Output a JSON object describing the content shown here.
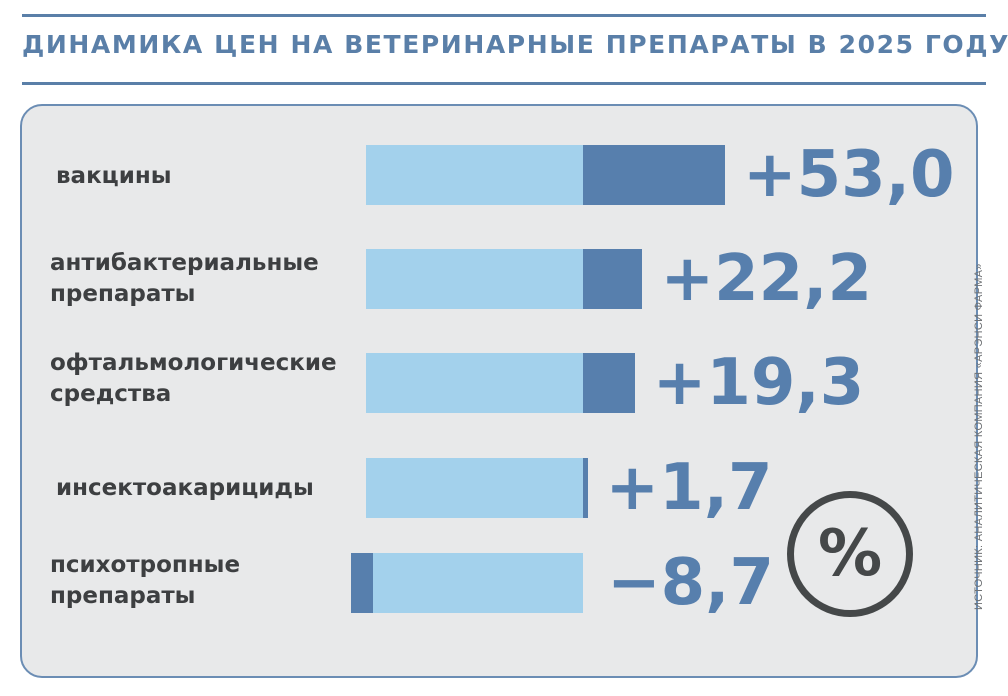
{
  "title": "ДИНАМИКА ЦЕН НА ВЕТЕРИНАРНЫЕ ПРЕПАРАТЫ В 2025 ГОДУ",
  "source": "ИСТОЧНИК: АНАЛИТИЧЕСКАЯ КОМПАНИЯ «АРЭНСИ ФАРМА»",
  "unit_symbol": "%",
  "colors": {
    "accent": "#577fad",
    "base_bar": "#a3d1ec",
    "text": "#3d3f41",
    "panel": "#e8e9ea"
  },
  "chart_data": {
    "type": "bar",
    "orientation": "horizontal",
    "title": "ДИНАМИКА ЦЕН НА ВЕТЕРИНАРНЫЕ ПРЕПАРАТЫ В 2025 ГОДУ",
    "unit": "%",
    "categories": [
      "вакцины",
      "антибактериальные\nпрепараты",
      "офтальмологические\nсредства",
      "инсектоакарициды",
      "психотропные\nпрепараты"
    ],
    "values": [
      53.0,
      22.2,
      19.3,
      1.7,
      -8.7
    ],
    "value_labels": [
      "+53,0",
      "+22,2",
      "+19,3",
      "+1,7",
      "−8,7"
    ]
  }
}
